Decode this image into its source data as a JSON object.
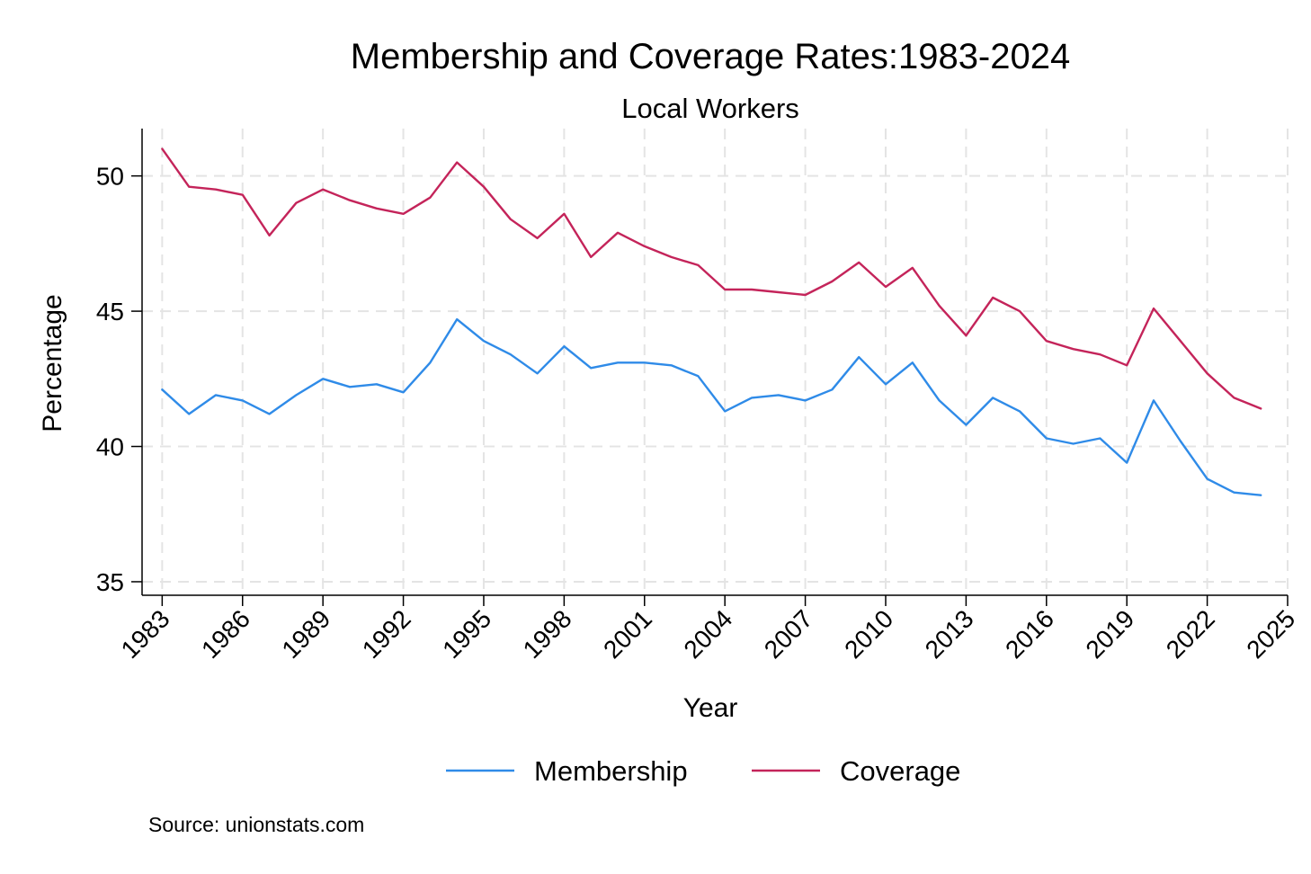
{
  "chart_data": {
    "type": "line",
    "title": "Membership and Coverage Rates:1983-2024",
    "subtitle": "Local Workers",
    "xlabel": "Year",
    "ylabel": "Percentage",
    "note": "Source: unionstats.com",
    "xlim": [
      1982.25,
      2025
    ],
    "ylim": [
      34.5,
      51.75
    ],
    "xticks": [
      1983,
      1986,
      1989,
      1992,
      1995,
      1998,
      2001,
      2004,
      2007,
      2010,
      2013,
      2016,
      2019,
      2022,
      2025
    ],
    "xtick_labels": [
      "1983",
      "1986",
      "1989",
      "1992",
      "1995",
      "1998",
      "2001",
      "2004",
      "2007",
      "2010",
      "2013",
      "2016",
      "2019",
      "2022",
      "2025"
    ],
    "yticks": [
      35,
      40,
      45,
      50
    ],
    "ytick_labels": [
      "35",
      "40",
      "45",
      "50"
    ],
    "grid": true,
    "legend_position": "bottom",
    "x": [
      1983,
      1984,
      1985,
      1986,
      1987,
      1988,
      1989,
      1990,
      1991,
      1992,
      1993,
      1994,
      1995,
      1996,
      1997,
      1998,
      1999,
      2000,
      2001,
      2002,
      2003,
      2004,
      2005,
      2006,
      2007,
      2008,
      2009,
      2010,
      2011,
      2012,
      2013,
      2014,
      2015,
      2016,
      2017,
      2018,
      2019,
      2020,
      2021,
      2022,
      2023,
      2024
    ],
    "series": [
      {
        "name": "Membership",
        "color": "#2f8be8",
        "values": [
          42.1,
          41.2,
          41.9,
          41.7,
          41.2,
          41.9,
          42.5,
          42.2,
          42.3,
          42.0,
          43.1,
          44.7,
          43.9,
          43.4,
          42.7,
          43.7,
          42.9,
          43.1,
          43.1,
          43.0,
          42.6,
          41.3,
          41.8,
          41.9,
          41.7,
          42.1,
          43.3,
          42.3,
          43.1,
          41.7,
          40.8,
          41.8,
          41.3,
          40.3,
          40.1,
          40.3,
          39.4,
          41.7,
          40.2,
          38.8,
          38.3,
          38.2
        ]
      },
      {
        "name": "Coverage",
        "color": "#c4245a",
        "values": [
          51.0,
          49.6,
          49.5,
          49.3,
          47.8,
          49.0,
          49.5,
          49.1,
          48.8,
          48.6,
          49.2,
          50.5,
          49.6,
          48.4,
          47.7,
          48.6,
          47.0,
          47.9,
          47.4,
          47.0,
          46.7,
          45.8,
          45.8,
          45.7,
          45.6,
          46.1,
          46.8,
          45.9,
          46.6,
          45.2,
          44.1,
          45.5,
          45.0,
          43.9,
          43.6,
          43.4,
          43.0,
          45.1,
          43.9,
          42.7,
          41.8,
          41.4
        ]
      }
    ]
  }
}
